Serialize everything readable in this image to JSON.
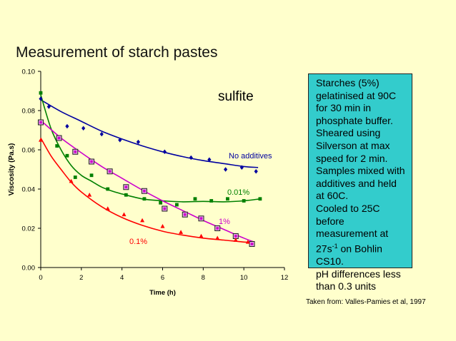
{
  "slide": {
    "title": "Measurement of starch pastes",
    "notes": [
      "Starches (5%) gelatinised at 90C for 30 min in phosphate buffer.",
      "Sheared using Silverson at max speed for 2 min.",
      "Samples mixed with additives and held at 60C.",
      "Cooled to 25C before measurement at 27s",
      "-1",
      " on Bohlin CS10.",
      "pH differences less than 0.3 units"
    ],
    "credit": "Taken from: Valles-Pamies et al, 1997",
    "colors": {
      "background": "#FFFFCC",
      "notes_box": "#33CCCC"
    }
  },
  "chart_data": {
    "type": "scatter",
    "title": "",
    "annotation": "sulfite",
    "xlabel": "Time (h)",
    "ylabel": "Viscosity (Pa.s)",
    "xlim": [
      0,
      12
    ],
    "ylim": [
      0,
      0.1
    ],
    "xticks": [
      "0",
      "2",
      "4",
      "6",
      "8",
      "10",
      "12"
    ],
    "yticks": [
      "0.00",
      "0.02",
      "0.04",
      "0.06",
      "0.08",
      "0.10"
    ],
    "grid": false,
    "legend": "inline labels",
    "series": [
      {
        "name": "No additives",
        "color": "#0000A0",
        "marker": "diamond",
        "points": [
          [
            0,
            0.086
          ],
          [
            0.4,
            0.082
          ],
          [
            1.3,
            0.072
          ],
          [
            2.1,
            0.071
          ],
          [
            3,
            0.068
          ],
          [
            3.9,
            0.065
          ],
          [
            4.8,
            0.064
          ],
          [
            6.1,
            0.059
          ],
          [
            7.4,
            0.056
          ],
          [
            8.3,
            0.055
          ],
          [
            9.1,
            0.05
          ],
          [
            9.9,
            0.051
          ],
          [
            10.6,
            0.049
          ]
        ],
        "curve": [
          [
            0,
            0.0855
          ],
          [
            1,
            0.0795
          ],
          [
            2,
            0.0745
          ],
          [
            3,
            0.0695
          ],
          [
            4,
            0.0655
          ],
          [
            5,
            0.062
          ],
          [
            6,
            0.059
          ],
          [
            7,
            0.0565
          ],
          [
            8,
            0.0545
          ],
          [
            9,
            0.053
          ],
          [
            10,
            0.0515
          ],
          [
            10.7,
            0.051
          ]
        ]
      },
      {
        "name": "0.01%",
        "color": "#008000",
        "marker": "square",
        "points": [
          [
            0,
            0.089
          ],
          [
            0.8,
            0.062
          ],
          [
            1.3,
            0.057
          ],
          [
            1.7,
            0.046
          ],
          [
            2.5,
            0.047
          ],
          [
            3.3,
            0.04
          ],
          [
            4.2,
            0.037
          ],
          [
            5.1,
            0.035
          ],
          [
            5.9,
            0.033
          ],
          [
            6.7,
            0.032
          ],
          [
            7.6,
            0.035
          ],
          [
            8.4,
            0.034
          ],
          [
            9.2,
            0.035
          ],
          [
            10,
            0.034
          ],
          [
            10.8,
            0.035
          ]
        ],
        "curve": [
          [
            0,
            0.088
          ],
          [
            0.5,
            0.071
          ],
          [
            1,
            0.06
          ],
          [
            1.5,
            0.052
          ],
          [
            2,
            0.047
          ],
          [
            2.5,
            0.044
          ],
          [
            3,
            0.041
          ],
          [
            3.5,
            0.039
          ],
          [
            4,
            0.0375
          ],
          [
            5,
            0.035
          ],
          [
            6,
            0.034
          ],
          [
            7,
            0.0335
          ],
          [
            8,
            0.0337
          ],
          [
            9,
            0.0335
          ],
          [
            10,
            0.034
          ],
          [
            10.8,
            0.035
          ]
        ]
      },
      {
        "name": "1%",
        "color": "#CC00CC",
        "marker": "open-square",
        "points": [
          [
            0,
            0.074
          ],
          [
            0.9,
            0.066
          ],
          [
            1.7,
            0.059
          ],
          [
            2.5,
            0.054
          ],
          [
            3.4,
            0.049
          ],
          [
            4.2,
            0.041
          ],
          [
            5.1,
            0.039
          ],
          [
            6.1,
            0.03
          ],
          [
            7.1,
            0.027
          ],
          [
            7.9,
            0.025
          ],
          [
            8.7,
            0.02
          ],
          [
            9.6,
            0.016
          ],
          [
            10.4,
            0.012
          ]
        ],
        "curve": [
          [
            0,
            0.075
          ],
          [
            1,
            0.066
          ],
          [
            2,
            0.0585
          ],
          [
            3,
            0.0515
          ],
          [
            4,
            0.0455
          ],
          [
            5,
            0.0395
          ],
          [
            6,
            0.034
          ],
          [
            7,
            0.029
          ],
          [
            8,
            0.024
          ],
          [
            9,
            0.0195
          ],
          [
            10,
            0.015
          ],
          [
            10.5,
            0.013
          ]
        ]
      },
      {
        "name": "0.1%",
        "color": "#FF0000",
        "marker": "triangle",
        "points": [
          [
            0,
            0.065
          ],
          [
            1.5,
            0.044
          ],
          [
            2.4,
            0.037
          ],
          [
            3.3,
            0.03
          ],
          [
            4.1,
            0.027
          ],
          [
            5,
            0.024
          ],
          [
            6,
            0.021
          ],
          [
            6.9,
            0.018
          ],
          [
            7.9,
            0.016
          ],
          [
            8.7,
            0.015
          ],
          [
            9.6,
            0.014
          ],
          [
            10.2,
            0.013
          ]
        ],
        "curve": [
          [
            0,
            0.066
          ],
          [
            0.5,
            0.057
          ],
          [
            1,
            0.05
          ],
          [
            1.5,
            0.0435
          ],
          [
            2,
            0.0385
          ],
          [
            3,
            0.031
          ],
          [
            4,
            0.0255
          ],
          [
            5,
            0.0215
          ],
          [
            6,
            0.0185
          ],
          [
            7,
            0.0165
          ],
          [
            8,
            0.015
          ],
          [
            9,
            0.014
          ],
          [
            10,
            0.013
          ],
          [
            10.5,
            0.0128
          ]
        ]
      }
    ],
    "labels": [
      "No additives",
      "0.01%",
      "1%",
      "0.1%"
    ]
  }
}
